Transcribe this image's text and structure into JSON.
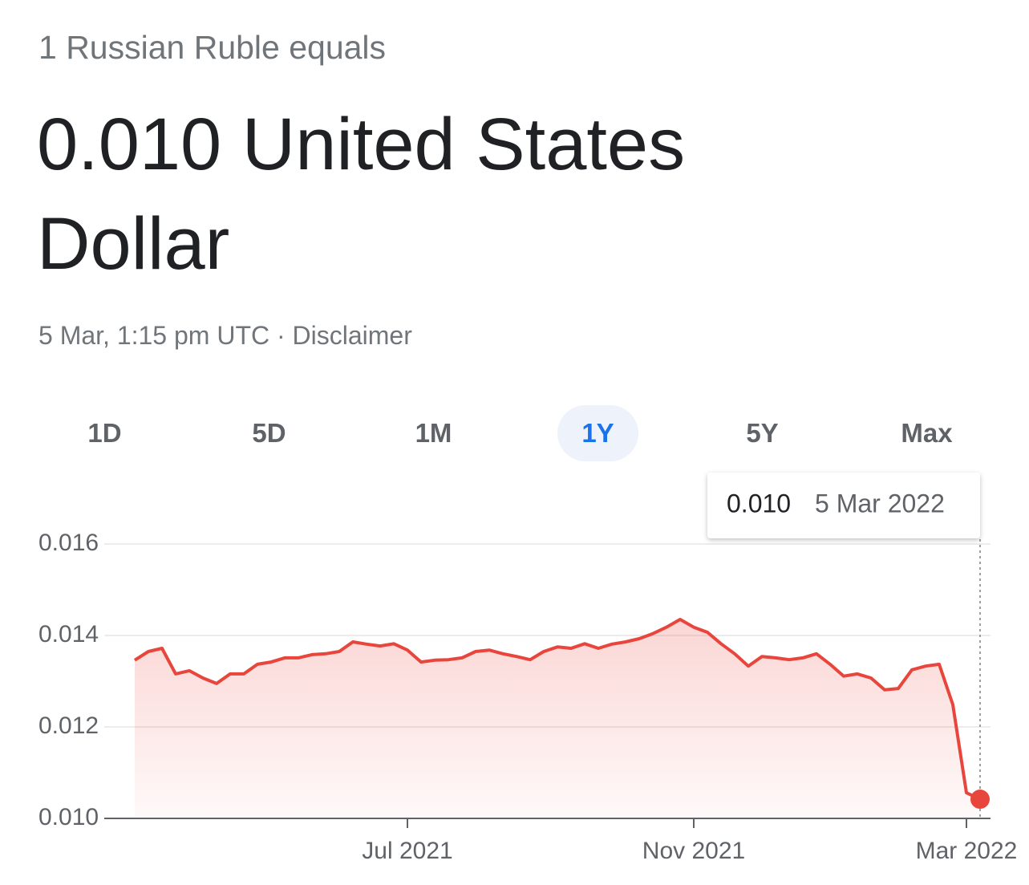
{
  "header": {
    "subtitle": "1 Russian Ruble equals",
    "title": "0.010 United States Dollar",
    "timestamp": "5 Mar, 1:15 pm UTC",
    "separator": "·",
    "disclaimer": "Disclaimer"
  },
  "tabs": {
    "items": [
      "1D",
      "5D",
      "1M",
      "1Y",
      "5Y",
      "Max"
    ],
    "selected": 3
  },
  "tooltip": {
    "value": "0.010",
    "date": "5 Mar 2022"
  },
  "chart_data": {
    "type": "line",
    "color": "#e8453c",
    "grid": true,
    "categories": [
      null,
      null,
      null,
      null,
      null,
      null,
      null,
      null,
      null,
      null,
      null,
      null,
      null,
      null,
      null,
      null,
      null,
      null,
      null,
      null,
      "Jul 2021",
      null,
      null,
      null,
      null,
      null,
      null,
      null,
      null,
      null,
      null,
      null,
      null,
      null,
      null,
      null,
      null,
      null,
      null,
      null,
      null,
      "Nov 2021",
      null,
      null,
      null,
      null,
      null,
      null,
      null,
      null,
      null,
      null,
      null,
      null,
      null,
      null,
      null,
      null,
      null,
      null,
      null,
      "Mar 2022",
      null
    ],
    "values": [
      0.01346,
      0.01365,
      0.01372,
      0.01316,
      0.01323,
      0.01307,
      0.01295,
      0.01316,
      0.01316,
      0.01337,
      0.01342,
      0.01351,
      0.01351,
      0.01358,
      0.0136,
      0.01365,
      0.01386,
      0.01381,
      0.01377,
      0.01382,
      0.01368,
      0.01342,
      0.01346,
      0.01347,
      0.01351,
      0.01365,
      0.01368,
      0.0136,
      0.01354,
      0.01347,
      0.01365,
      0.01375,
      0.01372,
      0.01382,
      0.01372,
      0.01381,
      0.01386,
      0.01393,
      0.01404,
      0.01418,
      0.01435,
      0.01418,
      0.01407,
      0.01382,
      0.0136,
      0.01333,
      0.01354,
      0.01351,
      0.01347,
      0.01351,
      0.0136,
      0.01337,
      0.01311,
      0.01316,
      0.01307,
      0.01281,
      0.01284,
      0.01325,
      0.01333,
      0.01337,
      0.01249,
      0.01056,
      0.01042
    ],
    "ylim": [
      0.01,
      0.016
    ],
    "yticks": [
      {
        "value": 0.01,
        "label": "0.010"
      },
      0.012,
      0.014,
      0.016
    ]
  }
}
